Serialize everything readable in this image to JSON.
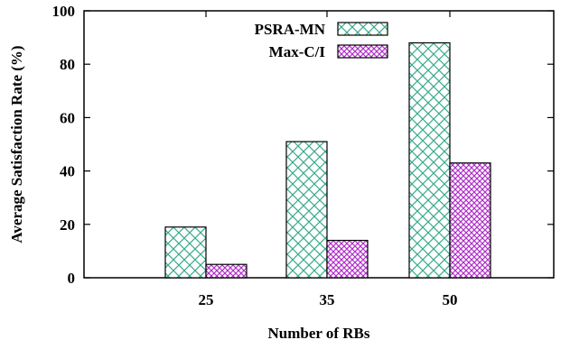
{
  "chart_data": {
    "type": "bar",
    "xlabel": "Number of RBs",
    "ylabel": "Average Satisfaction Rate  (%)",
    "categories": [
      "25",
      "35",
      "50"
    ],
    "ylim": [
      0,
      100
    ],
    "yticks": [
      0,
      20,
      40,
      60,
      80,
      100
    ],
    "grid": false,
    "legend_position": "top-right",
    "series": [
      {
        "name": "PSRA-MN",
        "values": [
          19,
          51,
          88
        ],
        "color": "#3aaa8c",
        "pattern": "crosshatch"
      },
      {
        "name": "Max-C/I",
        "values": [
          5,
          14,
          43
        ],
        "color": "#b030c8",
        "pattern": "fine-crosshatch"
      }
    ]
  }
}
